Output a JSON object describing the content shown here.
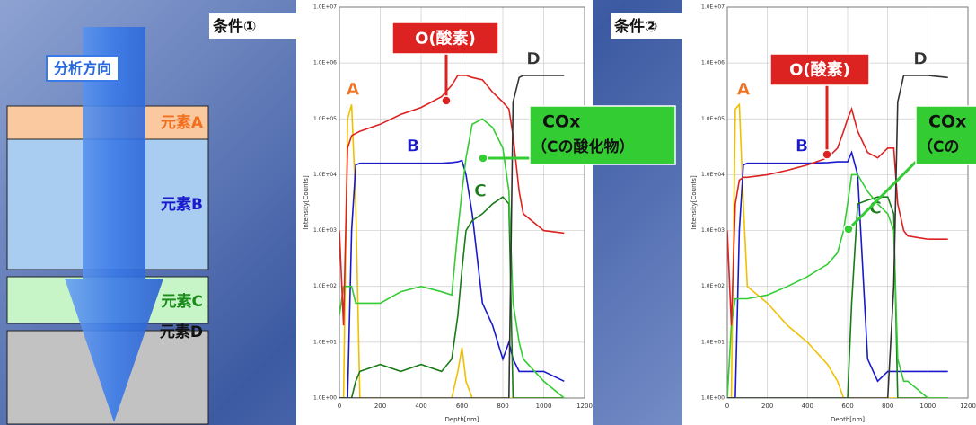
{
  "diagram": {
    "arrow_label": "分析方向",
    "layers": [
      "元素A",
      "元素B",
      "元素C",
      "元素D"
    ]
  },
  "chart_data": [
    {
      "type": "line",
      "title": "条件①",
      "xlabel": "Depth[nm]",
      "ylabel": "Intensity[Counts]",
      "log_y": true,
      "grid": true,
      "x": [
        0,
        20,
        40,
        60,
        80,
        100,
        200,
        300,
        400,
        500,
        550,
        580,
        600,
        620,
        650,
        700,
        750,
        800,
        830,
        850,
        880,
        900,
        1000,
        1100
      ],
      "xlim": [
        0,
        1200
      ],
      "xticks": [
        0,
        200,
        400,
        600,
        800,
        1000,
        1200
      ],
      "ylim": [
        1,
        10000000
      ],
      "yticks": [
        {
          "value": 1,
          "label": "1.0E+00"
        },
        {
          "value": 10,
          "label": "1.0E+01"
        },
        {
          "value": 100,
          "label": "1.0E+02"
        },
        {
          "value": 1000,
          "label": "1.0E+03"
        },
        {
          "value": 10000,
          "label": "1.0E+04"
        },
        {
          "value": 100000,
          "label": "1.0E+05"
        },
        {
          "value": 1000000,
          "label": "1.0E+06"
        },
        {
          "value": 10000000,
          "label": "1.0E+07"
        }
      ],
      "series": [
        {
          "name": "A",
          "color": "#f0c000",
          "values": [
            1,
            1,
            100000,
            180000,
            3000,
            1,
            1,
            1,
            1,
            1,
            1,
            3,
            8,
            2,
            1,
            1,
            1,
            1,
            1,
            1,
            1,
            1,
            1,
            1
          ]
        },
        {
          "name": "B",
          "color": "#1a1acc",
          "values": [
            1,
            1,
            1,
            1000,
            15000,
            16000,
            16000,
            16000,
            16000,
            16000,
            16500,
            17000,
            18000,
            10000,
            2000,
            50,
            20,
            5,
            10,
            5,
            3,
            3,
            3,
            2
          ]
        },
        {
          "name": "C",
          "color": "#1a7a1a",
          "values": [
            1,
            1,
            1,
            1,
            2,
            3,
            4,
            3,
            4,
            3,
            5,
            30,
            200,
            1000,
            1500,
            2000,
            3000,
            4000,
            3000,
            1,
            1,
            1,
            1,
            1
          ]
        },
        {
          "name": "COx",
          "note": "（Cの酸化物）",
          "color": "#33cc33",
          "values": [
            30,
            100,
            100,
            100,
            50,
            50,
            50,
            80,
            100,
            80,
            70,
            1000,
            5000,
            20000,
            80000,
            100000,
            70000,
            30000,
            5000,
            50,
            10,
            5,
            2,
            1
          ]
        },
        {
          "name": "O(酸素)",
          "color": "#dd2222",
          "values": [
            1000,
            20,
            30000,
            50000,
            55000,
            60000,
            80000,
            120000,
            160000,
            250000,
            400000,
            600000,
            600000,
            600000,
            550000,
            500000,
            300000,
            200000,
            150000,
            50000,
            5000,
            2000,
            1000,
            900
          ]
        },
        {
          "name": "D",
          "color": "#333333",
          "values": [
            1,
            1,
            1,
            1,
            1,
            1,
            1,
            1,
            1,
            1,
            1,
            1,
            1,
            1,
            1,
            1,
            1,
            1,
            1,
            200000,
            550000,
            600000,
            600000,
            600000
          ]
        }
      ]
    },
    {
      "type": "line",
      "title": "条件②",
      "xlabel": "Depth[nm]",
      "ylabel": "Intensity[Counts]",
      "log_y": true,
      "grid": true,
      "x": [
        0,
        20,
        40,
        60,
        80,
        100,
        200,
        300,
        400,
        500,
        550,
        580,
        600,
        620,
        650,
        700,
        750,
        800,
        830,
        850,
        880,
        900,
        1000,
        1100
      ],
      "xlim": [
        0,
        1200
      ],
      "xticks": [
        0,
        200,
        400,
        600,
        800,
        1000,
        1200
      ],
      "ylim": [
        1,
        10000000
      ],
      "yticks": [
        {
          "value": 1,
          "label": "1.0E+00"
        },
        {
          "value": 10,
          "label": "1.0E+01"
        },
        {
          "value": 100,
          "label": "1.0E+02"
        },
        {
          "value": 1000,
          "label": "1.0E+03"
        },
        {
          "value": 10000,
          "label": "1.0E+04"
        },
        {
          "value": 100000,
          "label": "1.0E+05"
        },
        {
          "value": 1000000,
          "label": "1.0E+06"
        },
        {
          "value": 10000000,
          "label": "1.0E+07"
        }
      ],
      "series": [
        {
          "name": "A",
          "color": "#f0c000",
          "values": [
            1,
            1,
            150000,
            180000,
            3000,
            100,
            50,
            20,
            10,
            4,
            2,
            1,
            1,
            1,
            1,
            1,
            1,
            1,
            1,
            1,
            1,
            1,
            1,
            1
          ]
        },
        {
          "name": "B",
          "color": "#1a1acc",
          "values": [
            1,
            1,
            1,
            1000,
            15000,
            16000,
            16000,
            16000,
            16000,
            16500,
            17000,
            17000,
            17000,
            25000,
            10000,
            5,
            2,
            3,
            3,
            3,
            3,
            3,
            3,
            3
          ]
        },
        {
          "name": "C",
          "color": "#1a7a1a",
          "values": [
            1,
            1,
            1,
            1,
            1,
            1,
            1,
            1,
            1,
            1,
            1,
            1,
            1,
            50,
            3000,
            3500,
            4000,
            4000,
            2000,
            1,
            1,
            1,
            1,
            1
          ]
        },
        {
          "name": "COx",
          "note": "（Cの",
          "color": "#33cc33",
          "values": [
            1,
            20,
            60,
            60,
            60,
            60,
            70,
            100,
            150,
            250,
            400,
            1000,
            3000,
            10000,
            10000,
            5000,
            3000,
            2000,
            1000,
            5,
            2,
            2,
            1,
            1
          ]
        },
        {
          "name": "O(酸素)",
          "color": "#dd2222",
          "values": [
            1000,
            20,
            3000,
            8000,
            9000,
            9000,
            10000,
            12000,
            15000,
            20000,
            30000,
            60000,
            100000,
            150000,
            60000,
            25000,
            20000,
            30000,
            30000,
            3000,
            1000,
            800,
            700,
            700
          ]
        },
        {
          "name": "D",
          "color": "#333333",
          "values": [
            1,
            1,
            1,
            1,
            1,
            1,
            1,
            1,
            1,
            1,
            1,
            1,
            1,
            1,
            1,
            1,
            1,
            1,
            100,
            200000,
            600000,
            600000,
            600000,
            550000
          ]
        }
      ]
    }
  ]
}
